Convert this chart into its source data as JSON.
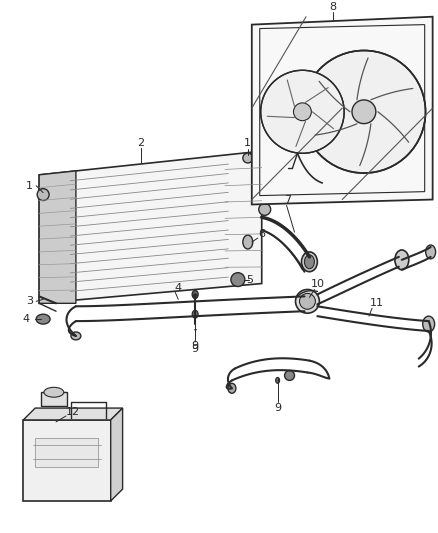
{
  "bg_color": "#ffffff",
  "line_color": "#2a2a2a",
  "fig_width": 4.38,
  "fig_height": 5.33,
  "dpi": 100
}
